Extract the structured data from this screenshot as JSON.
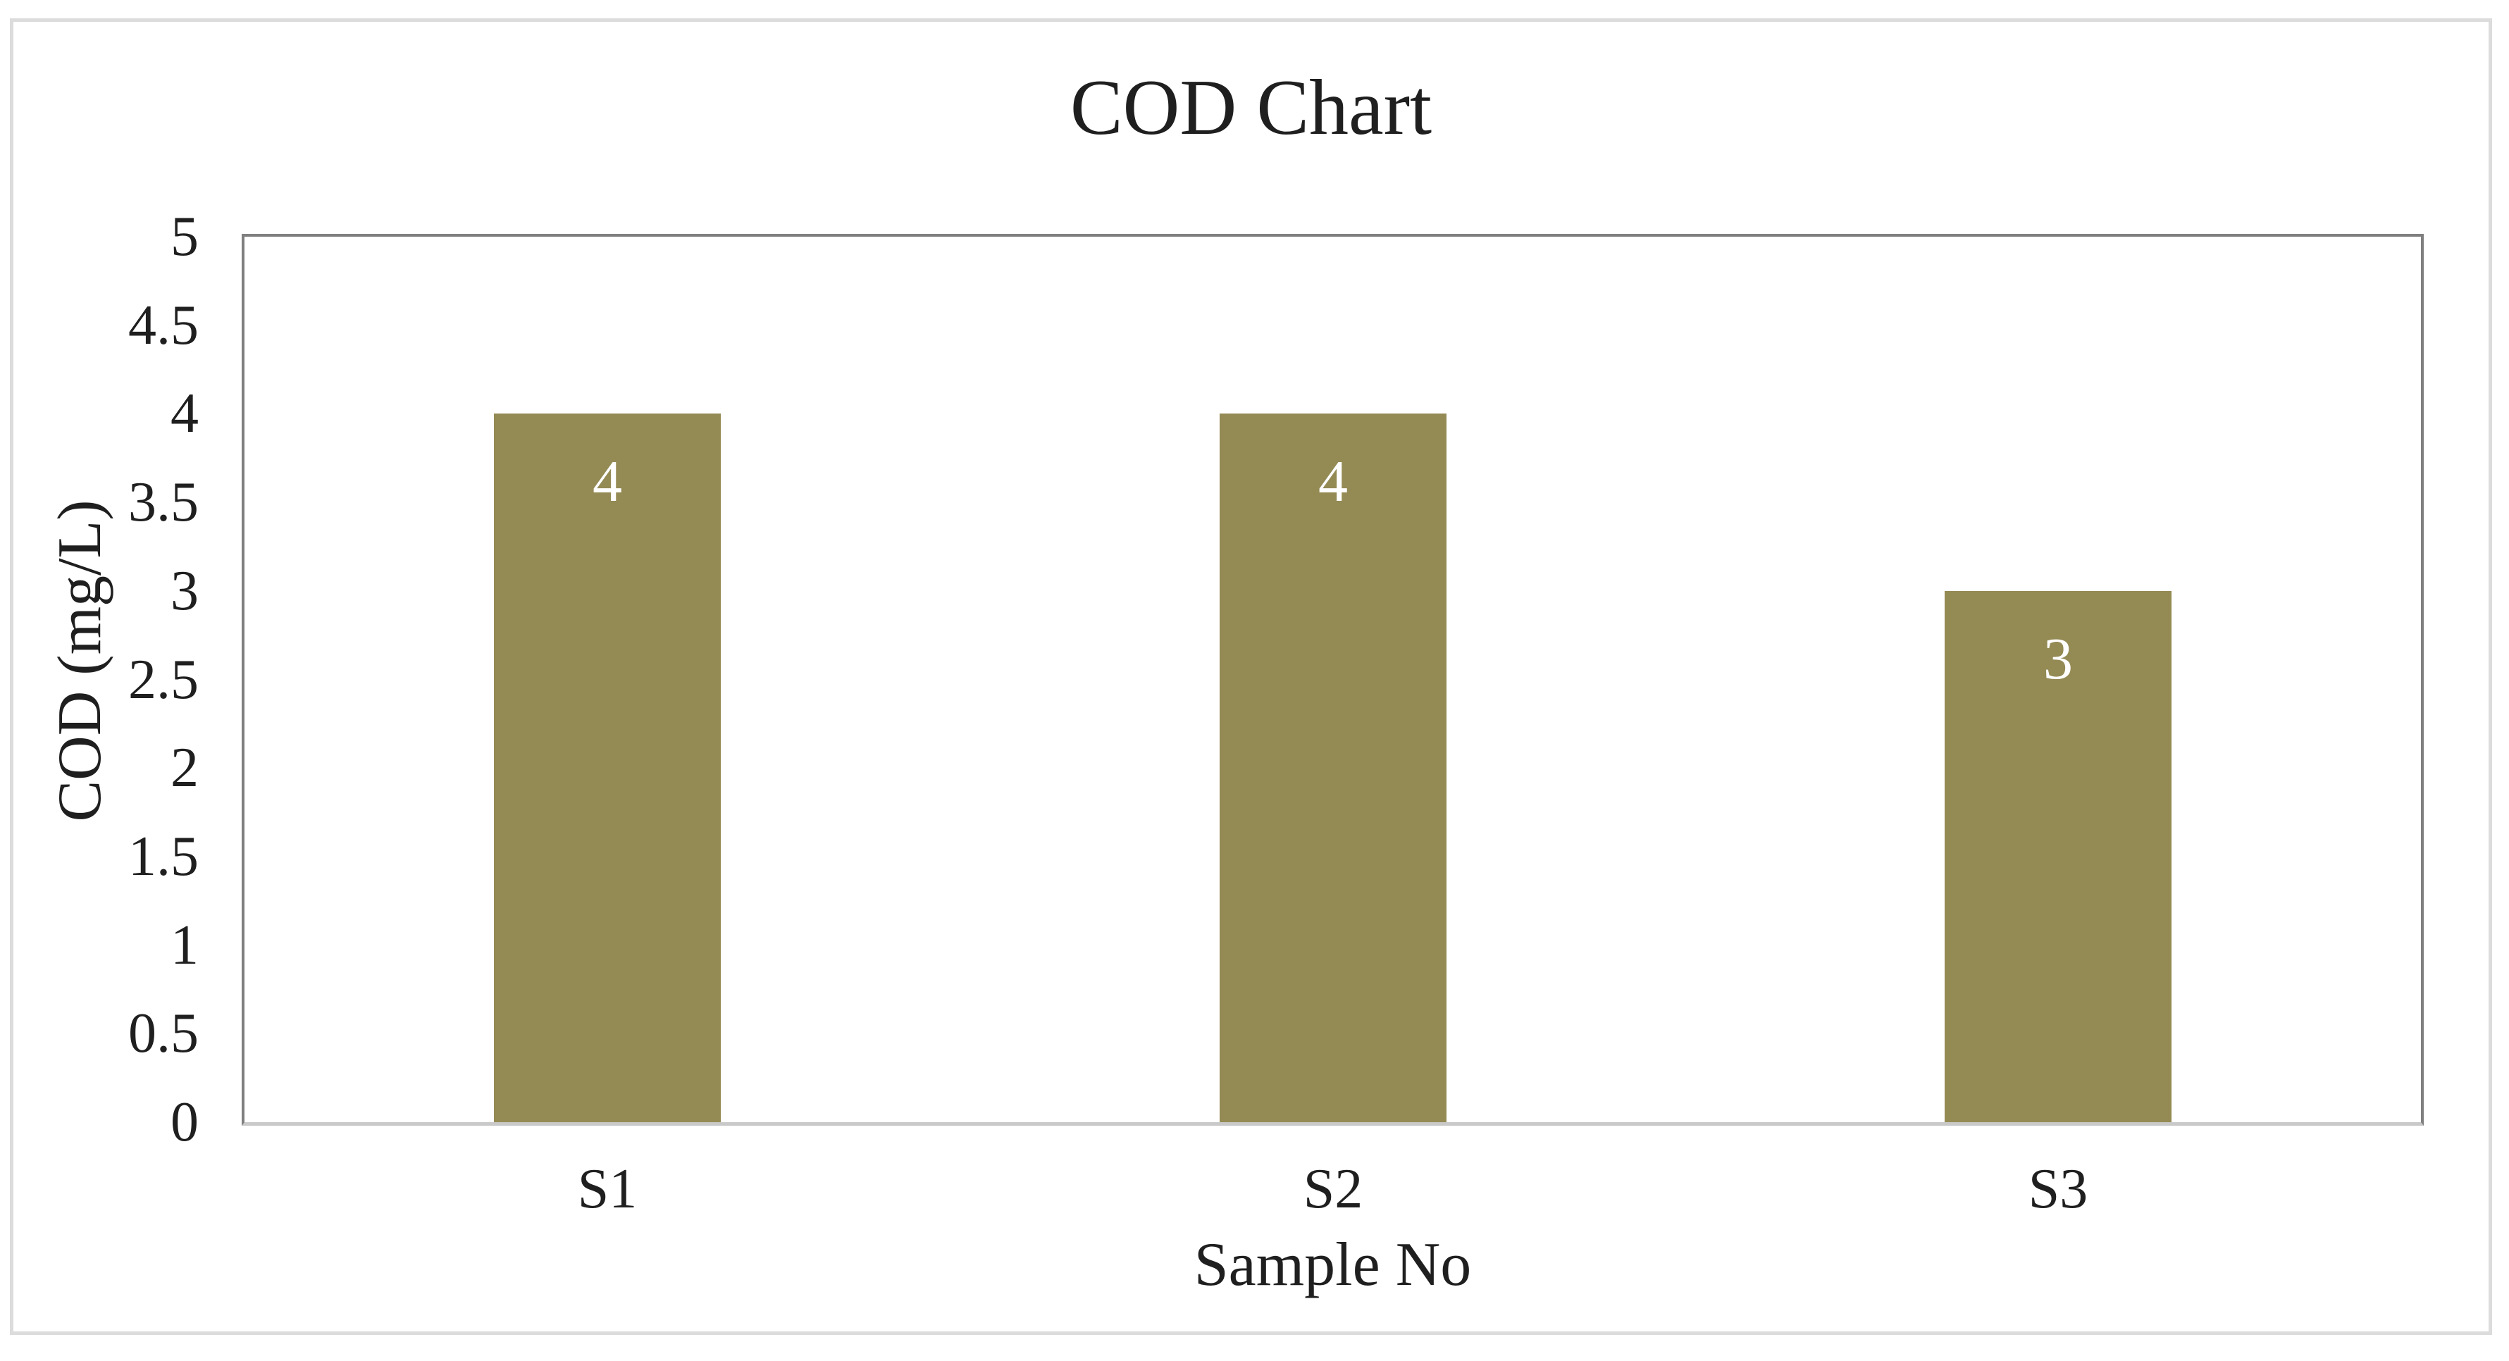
{
  "chart_data": {
    "type": "bar",
    "title": "COD Chart",
    "categories": [
      "S1",
      "S2",
      "S3"
    ],
    "values": [
      4,
      4,
      3
    ],
    "data_labels": [
      "4",
      "4",
      "3"
    ],
    "xlabel": "Sample No",
    "ylabel": "COD (mg/L)",
    "ylim": [
      0,
      5
    ],
    "ytick_step": 0.5,
    "yticks": [
      "5",
      "4.5",
      "4",
      "3.5",
      "3",
      "2.5",
      "2",
      "1.5",
      "1",
      "0.5",
      "0"
    ],
    "grid": false,
    "legend_position": "none",
    "data_label_position": "inside-end",
    "colors": {
      "bar": "#948A54",
      "data_label": "#FFFFFF",
      "text": "#1F1F1F",
      "plot_border": "#7F7F7F",
      "axis_line": "#C9C9C9",
      "figure_border": "#DCDCDC",
      "background": "#FFFFFF"
    }
  }
}
